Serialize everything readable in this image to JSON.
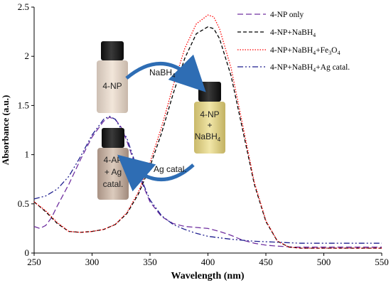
{
  "chart_data": {
    "type": "line",
    "xlabel": "Wavelength (nm)",
    "ylabel": "Absorbance (a.u.)",
    "xlim": [
      250,
      550
    ],
    "ylim": [
      0,
      2.5
    ],
    "xticks": [
      "250",
      "300",
      "350",
      "400",
      "450",
      "500",
      "550"
    ],
    "yticks": [
      "0",
      "0.5",
      "1",
      "1.5",
      "2",
      "2.5"
    ],
    "grid": false,
    "legend_position": "top-right",
    "series": [
      {
        "name": "4-NP only",
        "color": "#7030a0",
        "dash": "dash",
        "points": [
          [
            250,
            0.27
          ],
          [
            255,
            0.25
          ],
          [
            260,
            0.28
          ],
          [
            265,
            0.36
          ],
          [
            270,
            0.48
          ],
          [
            280,
            0.7
          ],
          [
            290,
            0.95
          ],
          [
            300,
            1.18
          ],
          [
            310,
            1.34
          ],
          [
            315,
            1.38
          ],
          [
            320,
            1.36
          ],
          [
            325,
            1.28
          ],
          [
            330,
            1.14
          ],
          [
            340,
            0.8
          ],
          [
            350,
            0.52
          ],
          [
            360,
            0.37
          ],
          [
            370,
            0.3
          ],
          [
            380,
            0.27
          ],
          [
            390,
            0.26
          ],
          [
            400,
            0.25
          ],
          [
            410,
            0.22
          ],
          [
            420,
            0.18
          ],
          [
            430,
            0.13
          ],
          [
            440,
            0.1
          ],
          [
            450,
            0.08
          ],
          [
            460,
            0.07
          ],
          [
            475,
            0.06
          ],
          [
            500,
            0.06
          ],
          [
            525,
            0.06
          ],
          [
            550,
            0.06
          ]
        ]
      },
      {
        "name": "4-NP+NaBH4",
        "color": "#000000",
        "dash": "longdash",
        "points": [
          [
            250,
            0.52
          ],
          [
            260,
            0.42
          ],
          [
            270,
            0.3
          ],
          [
            280,
            0.22
          ],
          [
            290,
            0.21
          ],
          [
            300,
            0.22
          ],
          [
            310,
            0.24
          ],
          [
            320,
            0.29
          ],
          [
            330,
            0.4
          ],
          [
            340,
            0.6
          ],
          [
            350,
            0.88
          ],
          [
            360,
            1.22
          ],
          [
            370,
            1.62
          ],
          [
            380,
            1.98
          ],
          [
            390,
            2.23
          ],
          [
            400,
            2.3
          ],
          [
            405,
            2.28
          ],
          [
            410,
            2.18
          ],
          [
            420,
            1.8
          ],
          [
            430,
            1.25
          ],
          [
            440,
            0.7
          ],
          [
            450,
            0.32
          ],
          [
            460,
            0.12
          ],
          [
            470,
            0.06
          ],
          [
            480,
            0.05
          ],
          [
            500,
            0.05
          ],
          [
            550,
            0.05
          ]
        ]
      },
      {
        "name": "4-NP+NaBH4+Fe3O4",
        "color": "#ff0000",
        "dash": "dot",
        "points": [
          [
            250,
            0.52
          ],
          [
            260,
            0.43
          ],
          [
            270,
            0.31
          ],
          [
            280,
            0.22
          ],
          [
            290,
            0.21
          ],
          [
            300,
            0.22
          ],
          [
            310,
            0.24
          ],
          [
            320,
            0.29
          ],
          [
            330,
            0.41
          ],
          [
            340,
            0.62
          ],
          [
            350,
            0.92
          ],
          [
            360,
            1.28
          ],
          [
            370,
            1.7
          ],
          [
            380,
            2.08
          ],
          [
            390,
            2.33
          ],
          [
            400,
            2.42
          ],
          [
            405,
            2.4
          ],
          [
            410,
            2.28
          ],
          [
            420,
            1.88
          ],
          [
            430,
            1.3
          ],
          [
            440,
            0.72
          ],
          [
            450,
            0.33
          ],
          [
            460,
            0.12
          ],
          [
            470,
            0.06
          ],
          [
            480,
            0.05
          ],
          [
            500,
            0.05
          ],
          [
            550,
            0.05
          ]
        ]
      },
      {
        "name": "4-NP+NaBH4+Ag catal.",
        "color": "#1f1f8f",
        "dash": "dashdotdot",
        "points": [
          [
            250,
            0.55
          ],
          [
            260,
            0.58
          ],
          [
            270,
            0.65
          ],
          [
            280,
            0.78
          ],
          [
            290,
            0.98
          ],
          [
            300,
            1.2
          ],
          [
            310,
            1.36
          ],
          [
            315,
            1.39
          ],
          [
            320,
            1.36
          ],
          [
            330,
            1.17
          ],
          [
            340,
            0.82
          ],
          [
            350,
            0.54
          ],
          [
            360,
            0.38
          ],
          [
            370,
            0.29
          ],
          [
            380,
            0.24
          ],
          [
            390,
            0.2
          ],
          [
            400,
            0.17
          ],
          [
            420,
            0.14
          ],
          [
            440,
            0.12
          ],
          [
            460,
            0.11
          ],
          [
            480,
            0.1
          ],
          [
            500,
            0.1
          ],
          [
            550,
            0.1
          ]
        ]
      }
    ]
  },
  "legend": {
    "items": [
      {
        "label": "4-NP only",
        "sub": "",
        "tail": ""
      },
      {
        "label": "4-NP+NaBH",
        "sub": "4",
        "tail": ""
      },
      {
        "label": "4-NP+NaBH",
        "sub": "4",
        "tail": "+Fe",
        "sub2": "3",
        "tail2": "O",
        "sub3": "4"
      },
      {
        "label": "4-NP+NaBH",
        "sub": "4",
        "tail": "+Ag catal."
      }
    ]
  },
  "inset": {
    "vial_4np": "4-NP",
    "vial_4np_nabh4_line1": "4-NP",
    "vial_4np_nabh4_line2": "+",
    "vial_4np_nabh4_line3": "NaBH",
    "vial_4np_nabh4_sub": "4",
    "vial_4ap_line1": "4-AP",
    "vial_4ap_line2": "+ Ag",
    "vial_4ap_line3": "catal.",
    "arrow_top_label": "NaBH",
    "arrow_top_sub": "4",
    "arrow_bottom_label": "Ag catal.",
    "colors": {
      "arrow": "#2e6db4",
      "cap": "#1a1a1a",
      "vial_4np_liquid": "#e8d8c8",
      "vial_nabh4_liquid": "#e6d9a0",
      "vial_4ap_liquid": "#d9c6b8"
    }
  }
}
